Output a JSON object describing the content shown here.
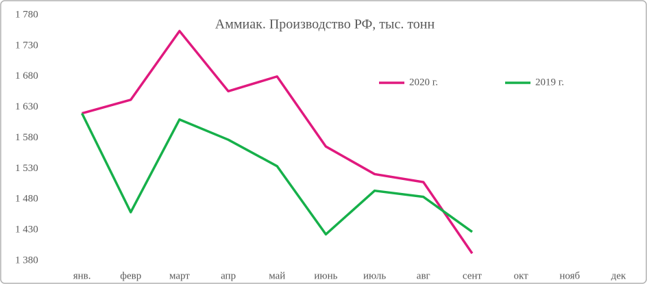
{
  "chart_data": {
    "type": "line",
    "title": "Аммиак. Производство РФ, тыс. тонн",
    "categories": [
      "янв.",
      "февр",
      "март",
      "апр",
      "май",
      "июнь",
      "июль",
      "авг",
      "сент",
      "окт",
      "нояб",
      "дек"
    ],
    "series": [
      {
        "name": "2020 г.",
        "color": "#e0197e",
        "values": [
          1620,
          1642,
          1754,
          1656,
          1680,
          1566,
          1521,
          1508,
          1392,
          null,
          null,
          null
        ]
      },
      {
        "name": "2019 г.",
        "color": "#16b04a",
        "values": [
          1620,
          1459,
          1610,
          1577,
          1534,
          1423,
          1494,
          1484,
          1427,
          null,
          null,
          null
        ]
      }
    ],
    "ylim": [
      1380,
      1780
    ],
    "yticks": [
      {
        "value": 1380,
        "label": "1 380"
      },
      {
        "value": 1430,
        "label": "1 430"
      },
      {
        "value": 1480,
        "label": "1 480"
      },
      {
        "value": 1530,
        "label": "1 530"
      },
      {
        "value": 1580,
        "label": "1 580"
      },
      {
        "value": 1630,
        "label": "1 630"
      },
      {
        "value": 1680,
        "label": "1 680"
      },
      {
        "value": 1730,
        "label": "1 730"
      },
      {
        "value": 1780,
        "label": "1 780"
      }
    ],
    "grid": false
  }
}
